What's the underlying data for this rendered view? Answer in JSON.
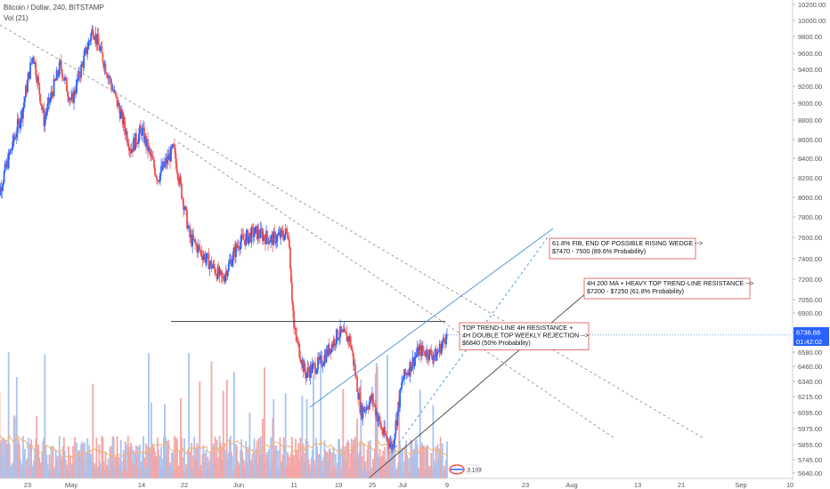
{
  "header": {
    "symbol_line": "Bitcoin / Dollar, 240, BITSTAMP",
    "indicator": "Vol (21)"
  },
  "price_badge": {
    "price": "6736.88",
    "countdown": "01:42:02",
    "color": "#2962ff"
  },
  "volume_badge": {
    "value": "3.103",
    "color": "#ef5350"
  },
  "colors": {
    "up": "#2962ff",
    "down": "#ef5350",
    "volume_up": "#a8c4f0",
    "volume_down": "#f4a6a6",
    "ma": "#f0b27a",
    "trendline": "#888888",
    "wedge": "#4a90d9",
    "support": "#333333",
    "note_border": "#e05050"
  },
  "annotations": [
    {
      "id": "fib",
      "lines": [
        "61.8% FIB, END OF POSSIBLE RISING WEDGE -->",
        "$7470 - 7500 (89.6% Probability)"
      ]
    },
    {
      "id": "ma200",
      "lines": [
        "4H 200 MA + HEAVY TOP TREND-LINE RESISTANCE -->",
        "$7200 - $7250 (61.8% Probability)"
      ]
    },
    {
      "id": "dtop",
      "lines": [
        "TOP TREND-LINE 4H RESISTANCE +",
        "4H DOUBLE TOP WEEKLY REJECTION -->",
        "$6840 (50% Probability)"
      ]
    }
  ],
  "chart_data": {
    "type": "candlestick",
    "title": "Bitcoin / Dollar, 240, BITSTAMP",
    "x_tick_labels": [
      "23",
      "May",
      "14",
      "22",
      "Jun",
      "11",
      "19",
      "25",
      "Jul",
      "9",
      "23",
      "Aug",
      "13",
      "21",
      "Sep",
      "10"
    ],
    "y_tick_labels": [
      "10200.00",
      "10000.00",
      "9800.00",
      "9600.00",
      "9400.00",
      "9200.00",
      "9000.00",
      "8800.00",
      "8600.00",
      "8400.00",
      "8200.00",
      "8000.00",
      "7800.00",
      "7600.00",
      "7400.00",
      "7200.00",
      "7050.00",
      "6900.00",
      "6760.00",
      "6580.00",
      "6460.00",
      "6340.00",
      "6215.00",
      "6095.00",
      "5975.00",
      "5855.00",
      "5745.00",
      "5640.00"
    ],
    "price_path": [
      {
        "date": "Apr 17",
        "price": 7900
      },
      {
        "date": "Apr 22",
        "price": 8900
      },
      {
        "date": "Apr 24",
        "price": 9600
      },
      {
        "date": "Apr 26",
        "price": 8800
      },
      {
        "date": "Apr 29",
        "price": 9450
      },
      {
        "date": "May 1",
        "price": 9000
      },
      {
        "date": "May 5",
        "price": 9900
      },
      {
        "date": "May 8",
        "price": 9300
      },
      {
        "date": "May 12",
        "price": 8500
      },
      {
        "date": "May 14",
        "price": 8700
      },
      {
        "date": "May 17",
        "price": 8200
      },
      {
        "date": "May 20",
        "price": 8500
      },
      {
        "date": "May 23",
        "price": 7600
      },
      {
        "date": "May 26",
        "price": 7400
      },
      {
        "date": "May 29",
        "price": 7200
      },
      {
        "date": "Jun 1",
        "price": 7550
      },
      {
        "date": "Jun 4",
        "price": 7650
      },
      {
        "date": "Jun 7",
        "price": 7580
      },
      {
        "date": "Jun 10",
        "price": 7650
      },
      {
        "date": "Jun 11",
        "price": 6780
      },
      {
        "date": "Jun 13",
        "price": 6400
      },
      {
        "date": "Jun 16",
        "price": 6500
      },
      {
        "date": "Jun 19",
        "price": 6750
      },
      {
        "date": "Jun 21",
        "price": 6700
      },
      {
        "date": "Jun 23",
        "price": 6100
      },
      {
        "date": "Jun 25",
        "price": 6200
      },
      {
        "date": "Jun 27",
        "price": 5950
      },
      {
        "date": "Jun 29",
        "price": 5840
      },
      {
        "date": "Jul 1",
        "price": 6350
      },
      {
        "date": "Jul 4",
        "price": 6600
      },
      {
        "date": "Jul 7",
        "price": 6550
      },
      {
        "date": "Jul 9",
        "price": 6736.88
      }
    ],
    "levels": {
      "horizontal_resistance": 6840,
      "last_price": 6736.88
    },
    "annotations": [
      "61.8% FIB, END OF POSSIBLE RISING WEDGE --> $7470 - 7500 (89.6% Probability)",
      "4H 200 MA + HEAVY TOP TREND-LINE RESISTANCE --> $7200 - $7250 (61.8% Probability)",
      "TOP TREND-LINE 4H RESISTANCE + 4H DOUBLE TOP WEEKLY REJECTION --> $6840 (50% Probability)"
    ],
    "grid": false,
    "legend": "top-left"
  }
}
